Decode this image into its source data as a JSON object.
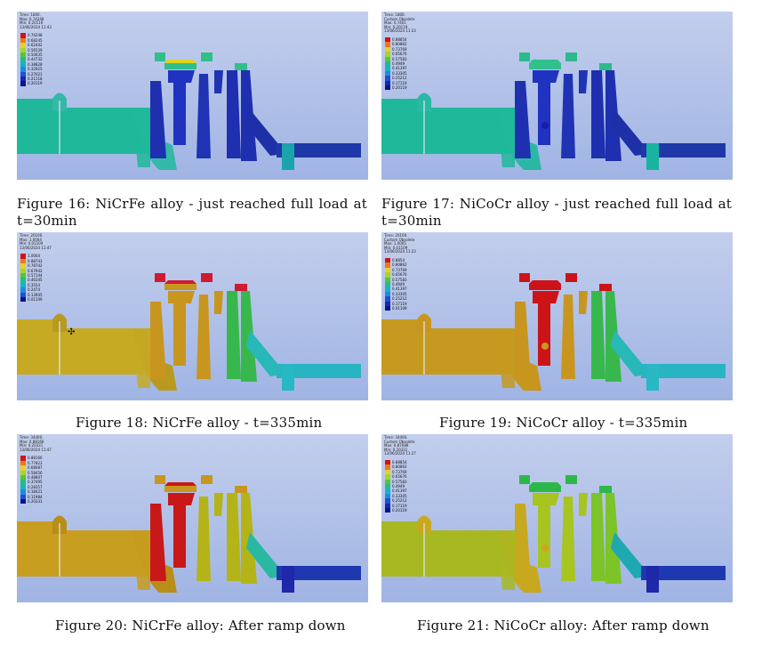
{
  "panels": [
    {
      "id": "p16",
      "info": [
        "Time: 1800.",
        "Max: 0.74248",
        "Min: 0.20119",
        "13/06/2024 11:43"
      ],
      "legend": [
        "0.74248",
        "0.68245",
        "0.62442",
        "0.56539",
        "0.50635",
        "0.44732",
        "0.38828",
        "0.32925",
        "0.27021",
        "0.21118",
        "0.20119"
      ],
      "legend_colors": [
        "#d11414",
        "#f07814",
        "#e8d21e",
        "#a8d424",
        "#52c832",
        "#24bc82",
        "#14b4c8",
        "#1e8cdc",
        "#1e50d2",
        "#1428b4",
        "#0a148c"
      ],
      "colors": {
        "bg1": "#c2ceec",
        "bg2": "#a0b4e4",
        "pipe": "#1fb89a",
        "base": "#34b8a8",
        "cap": "#2fbf8a",
        "top": "#2fbf8a",
        "d1": "#1e2fb0",
        "d2": "#1f33c0",
        "d3": "#1f33b4",
        "d4": "#1e2fb0",
        "dot": "#2a2fb8",
        "taper": "#1e30a8",
        "rpipe": "#1e38a8",
        "rend": "#1aa4ac",
        "accent": "#e0d21e"
      }
    },
    {
      "id": "p17",
      "info": [
        "Time: 1800.",
        "Custom Obsolete",
        "Max: 0.7401",
        "Min: 0.20119",
        "13/06/2024 11:23"
      ],
      "legend": [
        "0.88854",
        "0.80862",
        "0.73769",
        "0.65676",
        "0.57583",
        "0.4949",
        "0.41397",
        "0.33305",
        "0.25212",
        "0.17119",
        "0.20119"
      ],
      "legend_colors": [
        "#d11414",
        "#f07814",
        "#e8d21e",
        "#a8d424",
        "#52c832",
        "#24bc82",
        "#14b4c8",
        "#1e8cdc",
        "#1e50d2",
        "#1428b4",
        "#0a148c"
      ],
      "colors": {
        "bg1": "#c2ceec",
        "bg2": "#a0b4e4",
        "pipe": "#1fb89a",
        "base": "#2ab8a4",
        "cap": "#2cb98c",
        "top": "#30c08c",
        "d1": "#1e2fb0",
        "d2": "#1f33c0",
        "d3": "#1f33b4",
        "d4": "#1e2fb0",
        "dot": "#1a1ca8",
        "taper": "#1e30a8",
        "rpipe": "#1e38a8",
        "rend": "#18b4a0",
        "accent": "#30c08c"
      }
    },
    {
      "id": "p18",
      "info": [
        "Time: 20100.",
        "Max: 1.0004",
        "Min: 0.01109",
        "13/06/2024 11:47"
      ],
      "legend": [
        "1.0004",
        "0.88743",
        "0.78742",
        "0.67942",
        "0.57144",
        "0.46345",
        "0.3554",
        "0.2474",
        "0.13945",
        "0.01109"
      ],
      "legend_colors": [
        "#d11414",
        "#f07814",
        "#e8d21e",
        "#a8d424",
        "#52c832",
        "#24bc82",
        "#14b4c8",
        "#1e8cdc",
        "#1e50d2",
        "#0a148c"
      ],
      "colors": {
        "bg1": "#c2ceec",
        "bg2": "#a0b4e4",
        "pipe": "#c6aa24",
        "base": "#b89a20",
        "cap": "#d01a32",
        "top": "#c8961e",
        "d1": "#c8961e",
        "d2": "#c8961e",
        "d3": "#c8961e",
        "d4": "#38b84c",
        "dot": "#c8961e",
        "taper": "#28b8b8",
        "rpipe": "#28b4c0",
        "rend": "#28b8c4",
        "accent": "#d01a32"
      }
    },
    {
      "id": "p19",
      "info": [
        "Time: 20100.",
        "Custom Obsolete",
        "Max: 1.0005",
        "Min: 0.01109",
        "13/06/2024 11:23"
      ],
      "legend": [
        "0.8854",
        "0.80862",
        "0.73769",
        "0.65676",
        "0.57583",
        "0.4949",
        "0.41397",
        "0.33305",
        "0.25212",
        "0.17119",
        "0.01109"
      ],
      "legend_colors": [
        "#d11414",
        "#f07814",
        "#e8d21e",
        "#a8d424",
        "#52c832",
        "#24bc82",
        "#14b4c8",
        "#1e8cdc",
        "#1e50d2",
        "#1428b4",
        "#0a148c"
      ],
      "colors": {
        "bg1": "#c2ceec",
        "bg2": "#a0b4e4",
        "pipe": "#c69a20",
        "base": "#c8961e",
        "cap": "#cc1418",
        "top": "#cc1418",
        "d1": "#c8961e",
        "d2": "#cc1418",
        "d3": "#c8961e",
        "d4": "#38b84c",
        "dot": "#c8961e",
        "taper": "#28b8b8",
        "rpipe": "#28b4c0",
        "rend": "#28b8c4",
        "accent": "#cc1418"
      }
    },
    {
      "id": "p20",
      "info": [
        "Time: 34400.",
        "Max: 0.88166",
        "Min: 0.20331",
        "13/06/2024 11:47"
      ],
      "legend": [
        "0.88166",
        "0.77823",
        "0.68087",
        "0.58456",
        "0.48807",
        "0.37495",
        "0.28357",
        "0.18421",
        "0.11984",
        "0.20331"
      ],
      "legend_colors": [
        "#d11414",
        "#f07814",
        "#e8d21e",
        "#a8d424",
        "#52c832",
        "#24bc82",
        "#14b4c8",
        "#1e8cdc",
        "#1e50d2",
        "#0a148c"
      ],
      "colors": {
        "bg1": "#c2ceec",
        "bg2": "#a0b4e4",
        "pipe": "#c89e20",
        "base": "#b88e18",
        "cap": "#c8961e",
        "top": "#c8961e",
        "d1": "#c81818",
        "d2": "#c81818",
        "d3": "#b4b418",
        "d4": "#b4b418",
        "dot": "#c81818",
        "taper": "#2ab8a0",
        "rpipe": "#1e38b0",
        "rend": "#1e28a8",
        "accent": "#c81818"
      }
    },
    {
      "id": "p21",
      "info": [
        "Time: 34400.",
        "Custom Obsolete",
        "Max: 0.87088",
        "Min: 0.20331",
        "13/06/2024 11:27"
      ],
      "legend": [
        "0.88854",
        "0.80862",
        "0.73769",
        "0.65676",
        "0.57583",
        "0.4949",
        "0.41397",
        "0.33305",
        "0.25212",
        "0.17119",
        "0.20119"
      ],
      "legend_colors": [
        "#d11414",
        "#f07814",
        "#e8d21e",
        "#a8d424",
        "#52c832",
        "#24bc82",
        "#14b4c8",
        "#1e8cdc",
        "#1e50d2",
        "#1428b4",
        "#0a148c"
      ],
      "colors": {
        "bg1": "#c2ceec",
        "bg2": "#a0b4e4",
        "pipe": "#a8b822",
        "base": "#c8a81e",
        "cap": "#2cb848",
        "top": "#2cb848",
        "d1": "#c8a81e",
        "d2": "#a8c420",
        "d3": "#a8c420",
        "d4": "#7cc428",
        "dot": "#c8a81e",
        "taper": "#1ea8b0",
        "rpipe": "#1e38b0",
        "rend": "#1e28a8",
        "accent": "#2cb848"
      }
    }
  ],
  "captions": {
    "fig16": "Figure 16: NiCrFe alloy - just reached full load at t=30min",
    "fig17": "Figure 17: NiCoCr alloy - just reached full load at t=30min",
    "fig18": "Figure 18: NiCrFe alloy - t=335min",
    "fig19": "Figure 19: NiCoCr alloy - t=335min",
    "fig20": "Figure 20: NiCrFe alloy: After ramp down",
    "fig21": "Figure 21: NiCoCr alloy: After ramp down"
  }
}
